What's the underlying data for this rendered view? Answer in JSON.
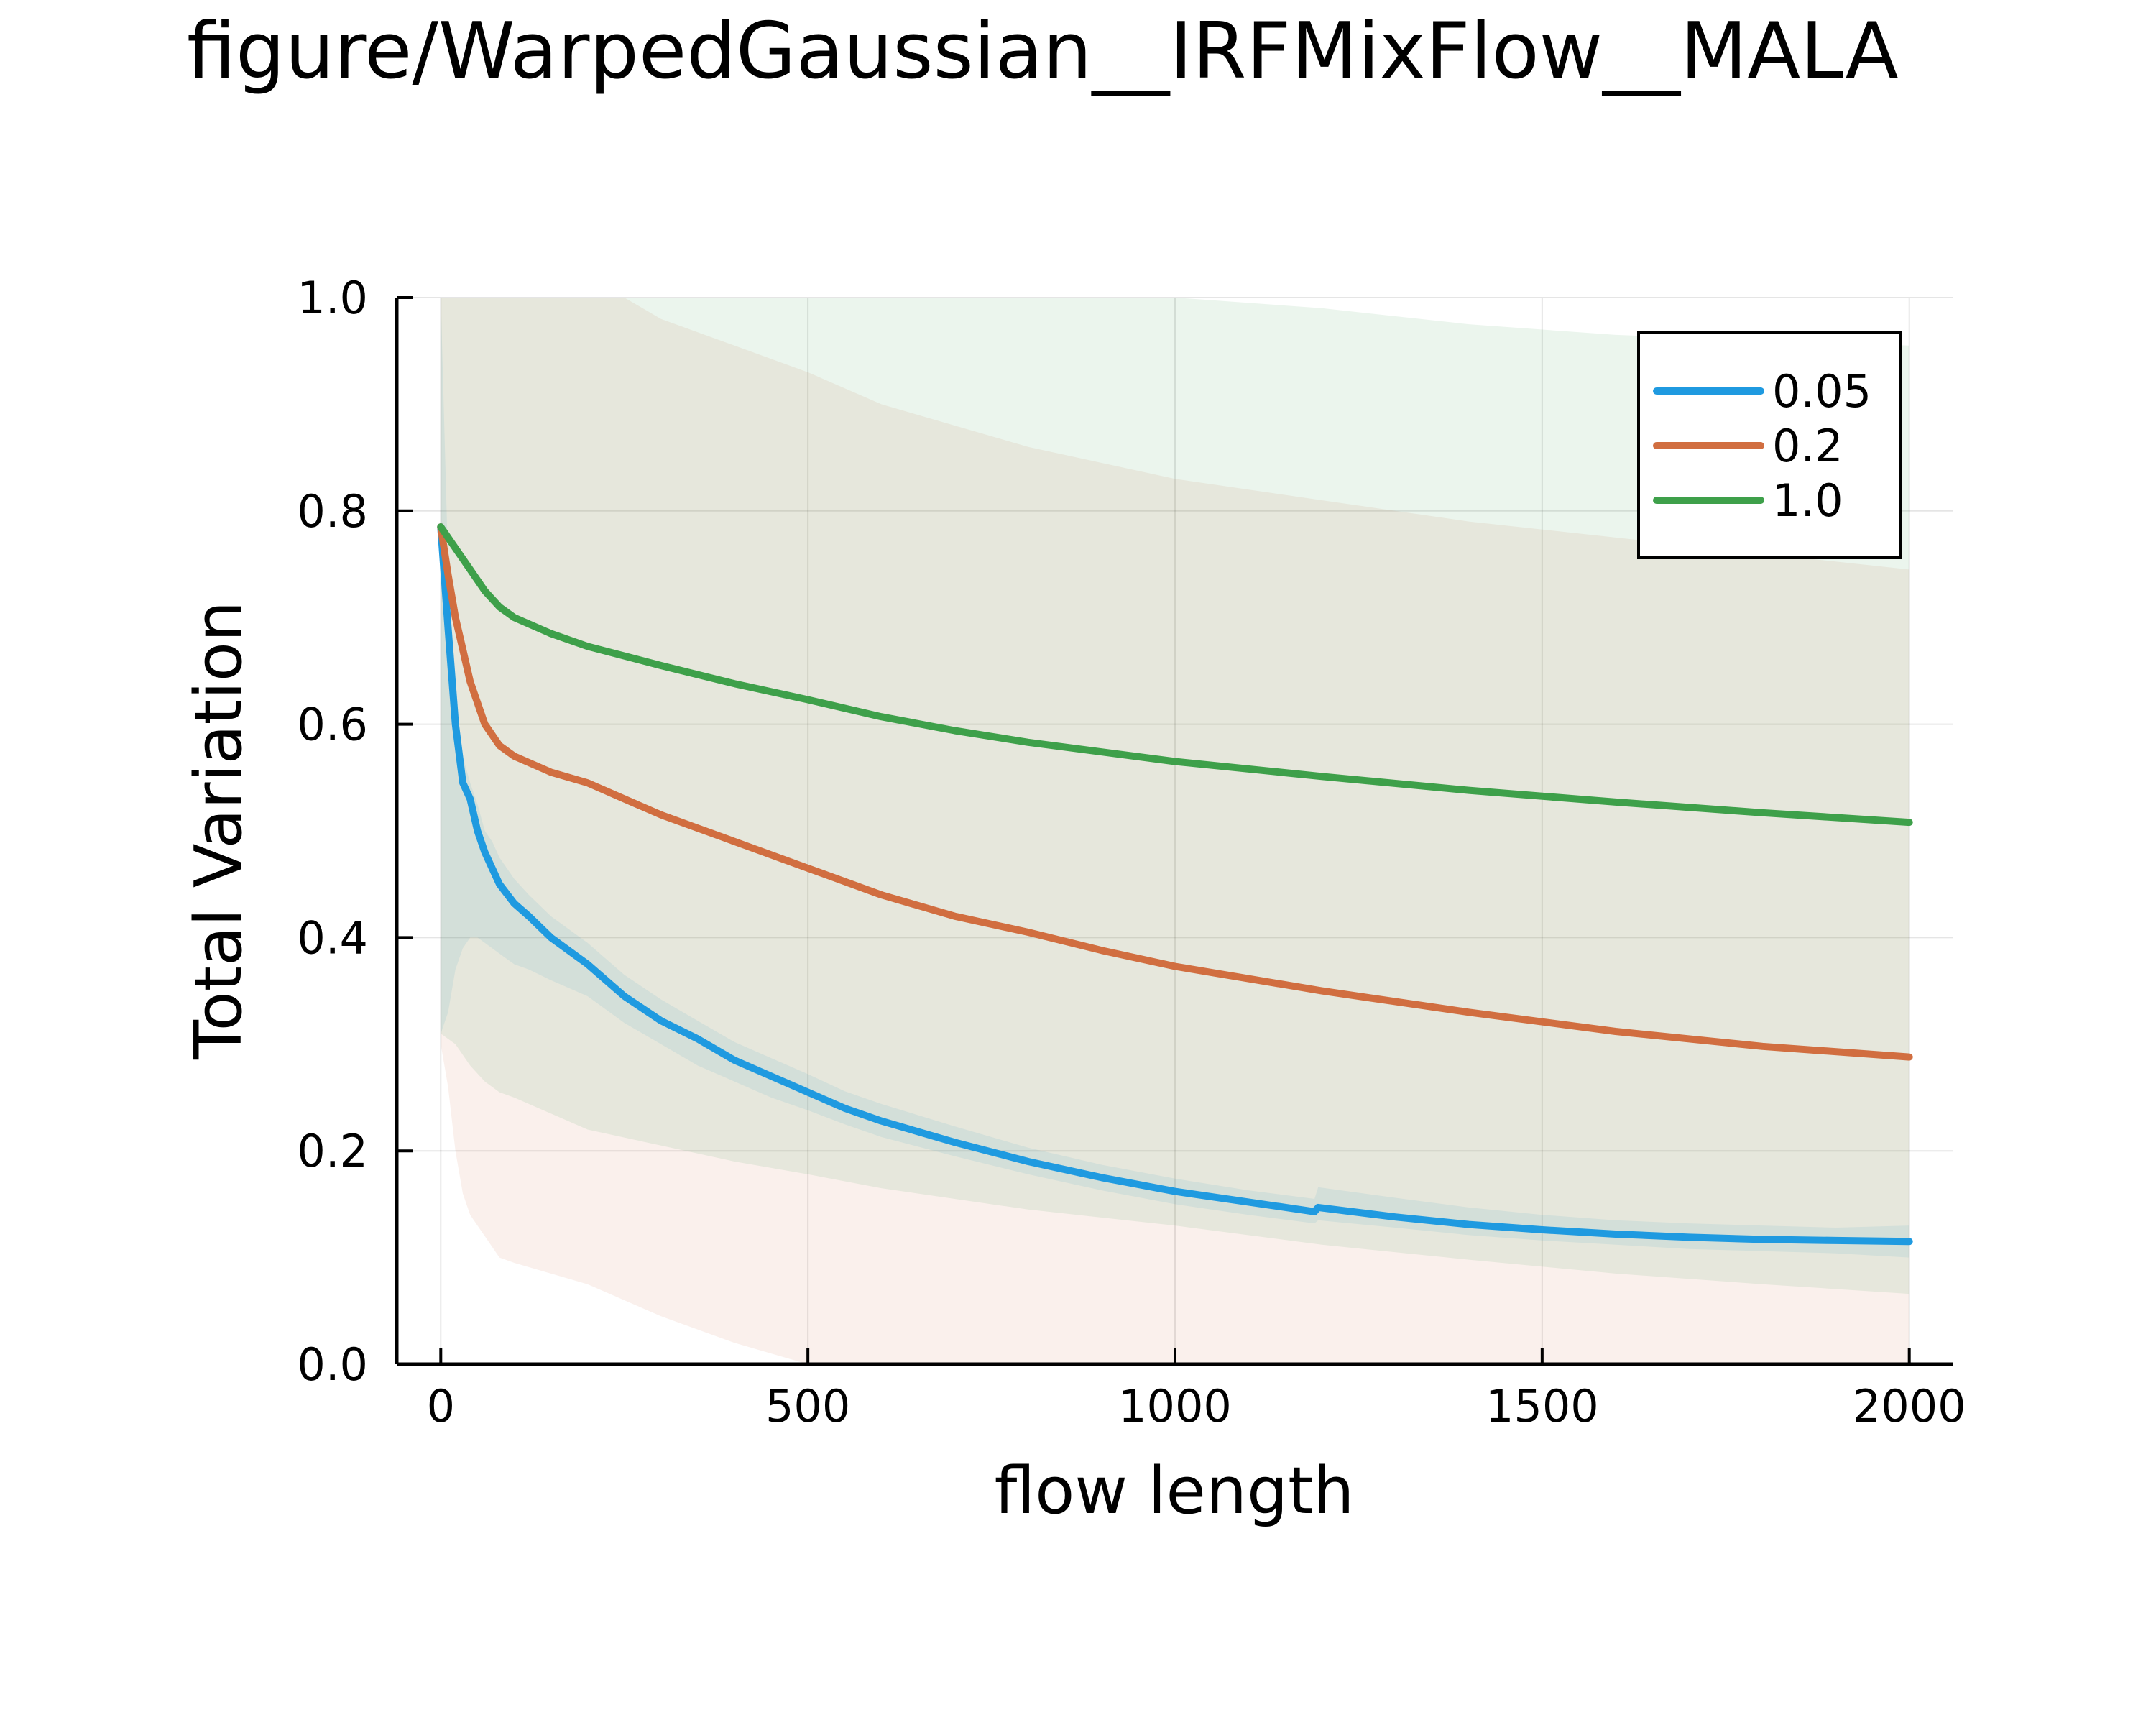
{
  "title": "figure/WarpedGaussian__IRFMixFlow__MALA",
  "chart_data": {
    "type": "line",
    "title": "figure/WarpedGaussian__IRFMixFlow__MALA",
    "xlabel": "flow length",
    "ylabel": "Total Variation",
    "xlim": [
      -60,
      2060
    ],
    "ylim": [
      0,
      1
    ],
    "xticks": [
      0,
      500,
      1000,
      1500,
      2000
    ],
    "yticks": [
      0.0,
      0.2,
      0.4,
      0.6,
      0.8,
      1.0
    ],
    "xtick_labels": [
      "0",
      "500",
      "1000",
      "1500",
      "2000"
    ],
    "ytick_labels": [
      "0.0",
      "0.2",
      "0.4",
      "0.6",
      "0.8",
      "1.0"
    ],
    "grid": true,
    "legend_position": "top-right",
    "series": [
      {
        "name": "0.05",
        "color": "#1f9ae0",
        "x": [
          0,
          10,
          20,
          30,
          40,
          50,
          60,
          70,
          80,
          100,
          120,
          150,
          200,
          250,
          300,
          350,
          400,
          450,
          500,
          550,
          600,
          700,
          800,
          900,
          1000,
          1100,
          1190,
          1195,
          1300,
          1400,
          1500,
          1600,
          1700,
          1800,
          1900,
          2000
        ],
        "y": [
          0.785,
          0.69,
          0.6,
          0.545,
          0.53,
          0.5,
          0.48,
          0.465,
          0.45,
          0.432,
          0.42,
          0.4,
          0.375,
          0.345,
          0.322,
          0.305,
          0.285,
          0.27,
          0.255,
          0.24,
          0.228,
          0.208,
          0.19,
          0.175,
          0.162,
          0.152,
          0.143,
          0.147,
          0.138,
          0.131,
          0.126,
          0.122,
          0.119,
          0.117,
          0.116,
          0.115
        ],
        "band_lower": [
          0.31,
          0.33,
          0.37,
          0.39,
          0.4,
          0.4,
          0.395,
          0.39,
          0.385,
          0.375,
          0.37,
          0.36,
          0.345,
          0.32,
          0.3,
          0.28,
          0.265,
          0.25,
          0.238,
          0.225,
          0.213,
          0.195,
          0.178,
          0.163,
          0.15,
          0.14,
          0.132,
          0.135,
          0.128,
          0.121,
          0.116,
          0.112,
          0.108,
          0.106,
          0.104,
          0.1
        ],
        "band_upper": [
          1.0,
          0.75,
          0.62,
          0.57,
          0.545,
          0.525,
          0.5,
          0.49,
          0.475,
          0.455,
          0.44,
          0.42,
          0.395,
          0.365,
          0.342,
          0.322,
          0.302,
          0.287,
          0.272,
          0.256,
          0.244,
          0.223,
          0.203,
          0.187,
          0.174,
          0.163,
          0.155,
          0.166,
          0.156,
          0.147,
          0.14,
          0.135,
          0.132,
          0.13,
          0.128,
          0.13
        ]
      },
      {
        "name": "0.2",
        "color": "#d16e40",
        "x": [
          0,
          10,
          20,
          30,
          40,
          50,
          60,
          70,
          80,
          100,
          150,
          200,
          250,
          300,
          400,
          500,
          600,
          700,
          800,
          900,
          1000,
          1200,
          1400,
          1600,
          1800,
          2000
        ],
        "y": [
          0.785,
          0.74,
          0.7,
          0.67,
          0.64,
          0.62,
          0.6,
          0.59,
          0.58,
          0.57,
          0.555,
          0.545,
          0.53,
          0.515,
          0.49,
          0.465,
          0.44,
          0.42,
          0.405,
          0.388,
          0.373,
          0.35,
          0.33,
          0.312,
          0.298,
          0.288
        ],
        "band_lower": [
          0.3,
          0.26,
          0.2,
          0.16,
          0.14,
          0.13,
          0.12,
          0.11,
          0.1,
          0.095,
          0.085,
          0.075,
          0.06,
          0.045,
          0.02,
          0.0,
          0.0,
          0.0,
          0.0,
          0.0,
          0.0,
          0.0,
          0.0,
          0.0,
          0.0,
          0.0
        ],
        "band_upper": [
          1.0,
          1.0,
          1.0,
          1.0,
          1.0,
          1.0,
          1.0,
          1.0,
          1.0,
          1.0,
          1.0,
          1.0,
          1.0,
          0.98,
          0.955,
          0.93,
          0.9,
          0.88,
          0.86,
          0.845,
          0.83,
          0.81,
          0.79,
          0.775,
          0.76,
          0.745
        ]
      },
      {
        "name": "1.0",
        "color": "#3ea04a",
        "x": [
          0,
          20,
          40,
          60,
          80,
          100,
          150,
          200,
          300,
          400,
          500,
          600,
          700,
          800,
          1000,
          1200,
          1400,
          1600,
          1800,
          2000
        ],
        "y": [
          0.785,
          0.765,
          0.745,
          0.725,
          0.71,
          0.7,
          0.685,
          0.673,
          0.655,
          0.638,
          0.623,
          0.607,
          0.594,
          0.583,
          0.565,
          0.551,
          0.538,
          0.527,
          0.517,
          0.508
        ],
        "band_lower": [
          0.31,
          0.3,
          0.28,
          0.265,
          0.255,
          0.25,
          0.235,
          0.22,
          0.205,
          0.19,
          0.178,
          0.165,
          0.155,
          0.145,
          0.13,
          0.112,
          0.098,
          0.085,
          0.075,
          0.066
        ],
        "band_upper": [
          1.0,
          1.0,
          1.0,
          1.0,
          1.0,
          1.0,
          1.0,
          1.0,
          1.0,
          1.0,
          1.0,
          1.0,
          1.0,
          1.0,
          1.0,
          0.99,
          0.975,
          0.965,
          0.96,
          0.955
        ]
      }
    ]
  }
}
